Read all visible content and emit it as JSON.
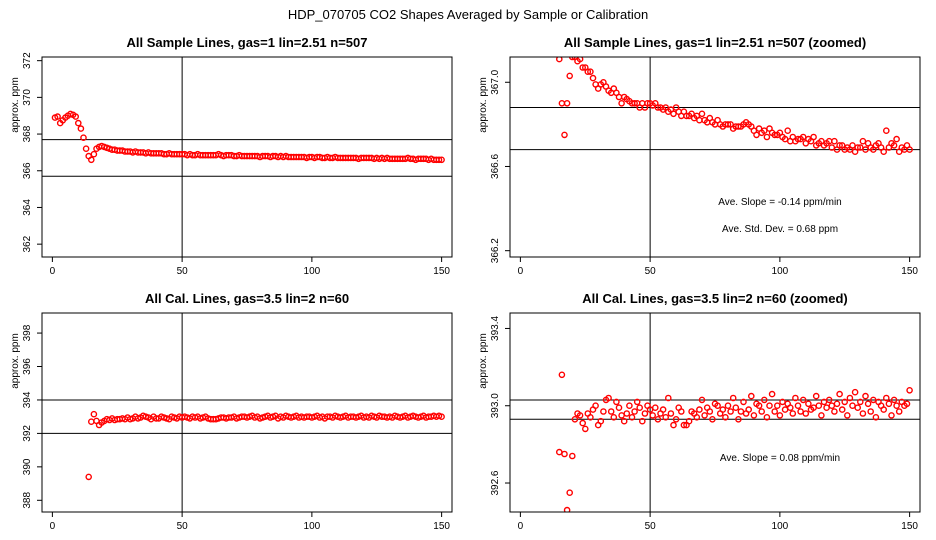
{
  "suptitle": "HDP_070705  CO2 Shapes Averaged by Sample or Calibration",
  "chart_data": [
    {
      "type": "scatter",
      "title": "All Sample Lines, gas=1 lin=2.51 n=507",
      "ylabel": "approx. ppm",
      "xlim": [
        -4,
        154
      ],
      "ylim": [
        361.3,
        372.2
      ],
      "xticks": [
        0,
        50,
        100,
        150
      ],
      "yticks": [
        362,
        364,
        366,
        368,
        370,
        372
      ],
      "vline": 50,
      "hlines": [
        365.7,
        367.7
      ],
      "annotations": [],
      "x": [
        1,
        2,
        3,
        4,
        5,
        6,
        7,
        8,
        9,
        10,
        11,
        12,
        13,
        14,
        15,
        16,
        17,
        18,
        19,
        20,
        21,
        22,
        23,
        24,
        25,
        26,
        27,
        28,
        29,
        30,
        31,
        32,
        33,
        34,
        35,
        36,
        37,
        38,
        39,
        40,
        41,
        42,
        43,
        44,
        45,
        46,
        47,
        48,
        49,
        50,
        51,
        52,
        53,
        54,
        55,
        56,
        57,
        58,
        59,
        60,
        61,
        62,
        63,
        64,
        65,
        66,
        67,
        68,
        69,
        70,
        71,
        72,
        73,
        74,
        75,
        76,
        77,
        78,
        79,
        80,
        81,
        82,
        83,
        84,
        85,
        86,
        87,
        88,
        89,
        90,
        91,
        92,
        93,
        94,
        95,
        96,
        97,
        98,
        99,
        100,
        101,
        102,
        103,
        104,
        105,
        106,
        107,
        108,
        109,
        110,
        111,
        112,
        113,
        114,
        115,
        116,
        117,
        118,
        119,
        120,
        121,
        122,
        123,
        124,
        125,
        126,
        127,
        128,
        129,
        130,
        131,
        132,
        133,
        134,
        135,
        136,
        137,
        138,
        139,
        140,
        141,
        142,
        143,
        144,
        145,
        146,
        147,
        148,
        149,
        150
      ],
      "y": [
        368.9,
        368.95,
        368.6,
        368.75,
        368.9,
        369.0,
        369.1,
        369.05,
        368.95,
        368.6,
        368.3,
        367.8,
        367.2,
        366.8,
        366.6,
        366.9,
        367.2,
        367.3,
        367.35,
        367.3,
        367.25,
        367.2,
        367.15,
        367.15,
        367.1,
        367.1,
        367.1,
        367.05,
        367.05,
        367.05,
        367.0,
        367.05,
        367.0,
        367.0,
        367.0,
        366.95,
        367.0,
        366.95,
        366.95,
        366.95,
        366.95,
        366.95,
        366.9,
        366.9,
        366.95,
        366.9,
        366.9,
        366.9,
        366.9,
        366.9,
        366.9,
        366.85,
        366.9,
        366.85,
        366.85,
        366.9,
        366.85,
        366.85,
        366.85,
        366.85,
        366.85,
        366.85,
        366.85,
        366.9,
        366.85,
        366.8,
        366.85,
        366.85,
        366.85,
        366.8,
        366.8,
        366.85,
        366.8,
        366.8,
        366.8,
        366.8,
        366.8,
        366.8,
        366.8,
        366.75,
        366.8,
        366.8,
        366.8,
        366.75,
        366.8,
        366.8,
        366.75,
        366.8,
        366.75,
        366.8,
        366.75,
        366.75,
        366.75,
        366.75,
        366.75,
        366.75,
        366.75,
        366.7,
        366.75,
        366.75,
        366.7,
        366.75,
        366.75,
        366.7,
        366.7,
        366.75,
        366.7,
        366.7,
        366.75,
        366.7,
        366.7,
        366.7,
        366.7,
        366.7,
        366.7,
        366.7,
        366.7,
        366.65,
        366.7,
        366.7,
        366.7,
        366.7,
        366.7,
        366.65,
        366.7,
        366.65,
        366.7,
        366.65,
        366.7,
        366.65,
        366.65,
        366.65,
        366.65,
        366.65,
        366.65,
        366.65,
        366.7,
        366.65,
        366.65,
        366.6,
        366.65,
        366.65,
        366.65,
        366.65,
        366.6,
        366.65,
        366.6,
        366.6,
        366.6,
        366.6
      ]
    },
    {
      "type": "scatter",
      "title": "All Sample Lines, gas=1 lin=2.51 n=507 (zoomed)",
      "ylabel": "approx. ppm",
      "xlim": [
        -4,
        154
      ],
      "ylim": [
        366.17,
        367.12
      ],
      "xticks": [
        0,
        50,
        100,
        150
      ],
      "yticks": [
        366.2,
        366.6,
        367.0
      ],
      "vline": 50,
      "hlines": [
        366.68,
        366.88
      ],
      "annotations": [
        "Ave. Slope =  -0.14  ppm/min",
        "Ave. Std. Dev. =  0.68  ppm"
      ],
      "x": [
        15,
        16,
        17,
        18,
        19,
        20,
        21,
        22,
        23,
        24,
        25,
        26,
        27,
        28,
        29,
        30,
        31,
        32,
        33,
        34,
        35,
        36,
        37,
        38,
        39,
        40,
        41,
        42,
        43,
        44,
        45,
        46,
        47,
        48,
        49,
        50,
        51,
        52,
        53,
        54,
        55,
        56,
        57,
        58,
        59,
        60,
        61,
        62,
        63,
        64,
        65,
        66,
        67,
        68,
        69,
        70,
        71,
        72,
        73,
        74,
        75,
        76,
        77,
        78,
        79,
        80,
        81,
        82,
        83,
        84,
        85,
        86,
        87,
        88,
        89,
        90,
        91,
        92,
        93,
        94,
        95,
        96,
        97,
        98,
        99,
        100,
        101,
        102,
        103,
        104,
        105,
        106,
        107,
        108,
        109,
        110,
        111,
        112,
        113,
        114,
        115,
        116,
        117,
        118,
        119,
        120,
        121,
        122,
        123,
        124,
        125,
        126,
        127,
        128,
        129,
        130,
        131,
        132,
        133,
        134,
        135,
        136,
        137,
        138,
        139,
        140,
        141,
        142,
        143,
        144,
        145,
        146,
        147,
        148,
        149,
        150
      ],
      "y": [
        367.11,
        366.9,
        366.75,
        366.9,
        367.03,
        367.12,
        367.12,
        367.1,
        367.11,
        367.07,
        367.07,
        367.05,
        367.05,
        367.02,
        366.99,
        366.97,
        366.99,
        367.0,
        366.98,
        366.96,
        366.95,
        366.97,
        366.95,
        366.93,
        366.9,
        366.93,
        366.92,
        366.91,
        366.9,
        366.9,
        366.9,
        366.88,
        366.9,
        366.88,
        366.9,
        366.9,
        366.89,
        366.9,
        366.88,
        366.88,
        366.87,
        366.88,
        366.86,
        366.87,
        366.85,
        366.88,
        366.86,
        366.84,
        366.86,
        366.84,
        366.84,
        366.85,
        366.83,
        366.84,
        366.82,
        366.85,
        366.82,
        366.81,
        366.83,
        366.81,
        366.8,
        366.82,
        366.8,
        366.79,
        366.8,
        366.8,
        366.8,
        366.78,
        366.79,
        366.79,
        366.79,
        366.8,
        366.81,
        366.8,
        366.79,
        366.77,
        366.75,
        366.78,
        366.76,
        366.77,
        366.74,
        366.78,
        366.76,
        366.75,
        366.75,
        366.76,
        366.74,
        366.73,
        366.77,
        366.72,
        366.74,
        366.72,
        366.73,
        366.73,
        366.74,
        366.71,
        366.73,
        366.72,
        366.74,
        366.7,
        366.71,
        366.72,
        366.7,
        366.71,
        366.72,
        366.69,
        366.72,
        366.68,
        366.7,
        366.7,
        366.68,
        366.69,
        366.68,
        366.7,
        366.67,
        366.69,
        366.69,
        366.72,
        366.68,
        366.71,
        366.69,
        366.68,
        366.7,
        366.71,
        366.69,
        366.67,
        366.77,
        366.69,
        366.71,
        366.7,
        366.73,
        366.67,
        366.69,
        366.68,
        366.7,
        366.68
      ]
    },
    {
      "type": "scatter",
      "title": "All Cal. Lines, gas=3.5 lin=2 n=60",
      "ylabel": "approx. ppm",
      "xlim": [
        -4,
        154
      ],
      "ylim": [
        387.3,
        399.2
      ],
      "xticks": [
        0,
        50,
        100,
        150
      ],
      "yticks": [
        388,
        390,
        392,
        394,
        396,
        398
      ],
      "vline": 50,
      "hlines": [
        392.0,
        394.0
      ],
      "annotations": [],
      "x": [
        14,
        15,
        16,
        17,
        18,
        19,
        20,
        21,
        22,
        23,
        24,
        25,
        26,
        27,
        28,
        29,
        30,
        31,
        32,
        33,
        34,
        35,
        36,
        37,
        38,
        39,
        40,
        41,
        42,
        43,
        44,
        45,
        46,
        47,
        48,
        49,
        50,
        51,
        52,
        53,
        54,
        55,
        56,
        57,
        58,
        59,
        60,
        61,
        62,
        63,
        64,
        65,
        66,
        67,
        68,
        69,
        70,
        71,
        72,
        73,
        74,
        75,
        76,
        77,
        78,
        79,
        80,
        81,
        82,
        83,
        84,
        85,
        86,
        87,
        88,
        89,
        90,
        91,
        92,
        93,
        94,
        95,
        96,
        97,
        98,
        99,
        100,
        101,
        102,
        103,
        104,
        105,
        106,
        107,
        108,
        109,
        110,
        111,
        112,
        113,
        114,
        115,
        116,
        117,
        118,
        119,
        120,
        121,
        122,
        123,
        124,
        125,
        126,
        127,
        128,
        129,
        130,
        131,
        132,
        133,
        134,
        135,
        136,
        137,
        138,
        139,
        140,
        141,
        142,
        143,
        144,
        145,
        146,
        147,
        148,
        149,
        150
      ],
      "y": [
        389.4,
        392.7,
        393.15,
        392.75,
        392.5,
        392.65,
        392.75,
        392.85,
        392.8,
        392.9,
        392.8,
        392.85,
        392.85,
        392.9,
        392.85,
        392.95,
        392.85,
        392.9,
        393.0,
        392.9,
        392.95,
        393.05,
        393.0,
        392.95,
        392.85,
        393.0,
        392.9,
        392.9,
        393.0,
        392.95,
        392.9,
        392.85,
        393.0,
        392.95,
        392.9,
        393.0,
        392.95,
        393.0,
        392.95,
        392.9,
        393.0,
        392.95,
        393.0,
        392.9,
        392.95,
        393.0,
        392.9,
        392.85,
        392.85,
        392.85,
        392.9,
        392.95,
        392.95,
        392.9,
        392.95,
        392.95,
        393.0,
        392.9,
        392.95,
        393.0,
        393.0,
        392.95,
        393.0,
        393.05,
        392.95,
        393.0,
        392.9,
        392.95,
        393.0,
        393.05,
        392.95,
        393.0,
        393.05,
        392.9,
        393.0,
        392.95,
        393.05,
        393.0,
        392.95,
        393.0,
        393.05,
        392.95,
        393.0,
        392.95,
        393.0,
        393.0,
        392.95,
        393.0,
        393.05,
        392.95,
        393.0,
        392.9,
        393.0,
        393.0,
        392.95,
        393.05,
        393.0,
        392.95,
        393.0,
        393.05,
        392.95,
        393.0,
        393.0,
        392.95,
        393.0,
        393.05,
        392.95,
        393.0,
        392.95,
        393.05,
        393.0,
        392.95,
        393.05,
        393.0,
        393.0,
        392.95,
        393.0,
        392.95,
        393.05,
        393.0,
        392.95,
        393.0,
        393.05,
        392.95,
        393.0,
        393.05,
        393.0,
        392.95,
        393.0,
        393.05,
        392.95,
        393.0,
        393.0,
        393.05,
        393.0,
        393.05,
        393.0
      ]
    },
    {
      "type": "scatter",
      "title": "All Cal. Lines, gas=3.5 lin=2 n=60 (zoomed)",
      "ylabel": "approx. ppm",
      "xlim": [
        -4,
        154
      ],
      "ylim": [
        392.45,
        393.48
      ],
      "xticks": [
        0,
        50,
        100,
        150
      ],
      "yticks": [
        392.6,
        393.0,
        393.4
      ],
      "vline": 50,
      "hlines": [
        392.93,
        393.03
      ],
      "annotations": [
        "Ave. Slope =  0.08  ppm/min"
      ],
      "x": [
        15,
        16,
        17,
        18,
        19,
        20,
        21,
        22,
        23,
        24,
        25,
        26,
        27,
        28,
        29,
        30,
        31,
        32,
        33,
        34,
        35,
        36,
        37,
        38,
        39,
        40,
        41,
        42,
        43,
        44,
        45,
        46,
        47,
        48,
        49,
        50,
        51,
        52,
        53,
        54,
        55,
        56,
        57,
        58,
        59,
        60,
        61,
        62,
        63,
        64,
        65,
        66,
        67,
        68,
        69,
        70,
        71,
        72,
        73,
        74,
        75,
        76,
        77,
        78,
        79,
        80,
        81,
        82,
        83,
        84,
        85,
        86,
        87,
        88,
        89,
        90,
        91,
        92,
        93,
        94,
        95,
        96,
        97,
        98,
        99,
        100,
        101,
        102,
        103,
        104,
        105,
        106,
        107,
        108,
        109,
        110,
        111,
        112,
        113,
        114,
        115,
        116,
        117,
        118,
        119,
        120,
        121,
        122,
        123,
        124,
        125,
        126,
        127,
        128,
        129,
        130,
        131,
        132,
        133,
        134,
        135,
        136,
        137,
        138,
        139,
        140,
        141,
        142,
        143,
        144,
        145,
        146,
        147,
        148,
        149,
        150
      ],
      "y": [
        392.76,
        393.16,
        392.75,
        392.46,
        392.55,
        392.74,
        392.93,
        392.96,
        392.95,
        392.91,
        392.88,
        392.96,
        392.94,
        392.98,
        393.0,
        392.9,
        392.92,
        392.97,
        393.03,
        393.04,
        392.97,
        392.94,
        393.02,
        392.99,
        392.95,
        392.92,
        392.96,
        393.0,
        392.94,
        392.97,
        393.02,
        392.99,
        392.92,
        392.96,
        393.0,
        392.98,
        392.95,
        392.99,
        392.93,
        392.96,
        392.98,
        392.94,
        393.04,
        392.96,
        392.9,
        392.93,
        392.99,
        392.97,
        392.9,
        392.9,
        392.92,
        392.97,
        392.96,
        392.94,
        392.98,
        393.03,
        392.95,
        392.99,
        392.97,
        392.93,
        393.01,
        393.0,
        392.96,
        392.98,
        392.94,
        393.0,
        392.97,
        393.04,
        392.99,
        392.93,
        392.97,
        393.02,
        392.96,
        392.98,
        393.05,
        392.95,
        393.01,
        393.0,
        392.97,
        393.03,
        392.94,
        393.0,
        393.06,
        392.97,
        393.0,
        392.95,
        393.02,
        392.98,
        393.01,
        392.99,
        392.96,
        393.04,
        393.0,
        392.97,
        393.03,
        392.96,
        393.01,
        392.98,
        392.99,
        393.05,
        393.0,
        392.95,
        393.02,
        392.99,
        393.03,
        393.0,
        392.97,
        393.01,
        393.06,
        392.98,
        393.02,
        392.95,
        393.04,
        393.0,
        393.07,
        392.99,
        393.02,
        392.96,
        393.05,
        393.01,
        392.97,
        393.03,
        392.94,
        393.02,
        393.0,
        392.98,
        393.04,
        393.01,
        392.95,
        393.03,
        393.0,
        392.97,
        393.02,
        393.0,
        393.01,
        393.08
      ]
    }
  ]
}
